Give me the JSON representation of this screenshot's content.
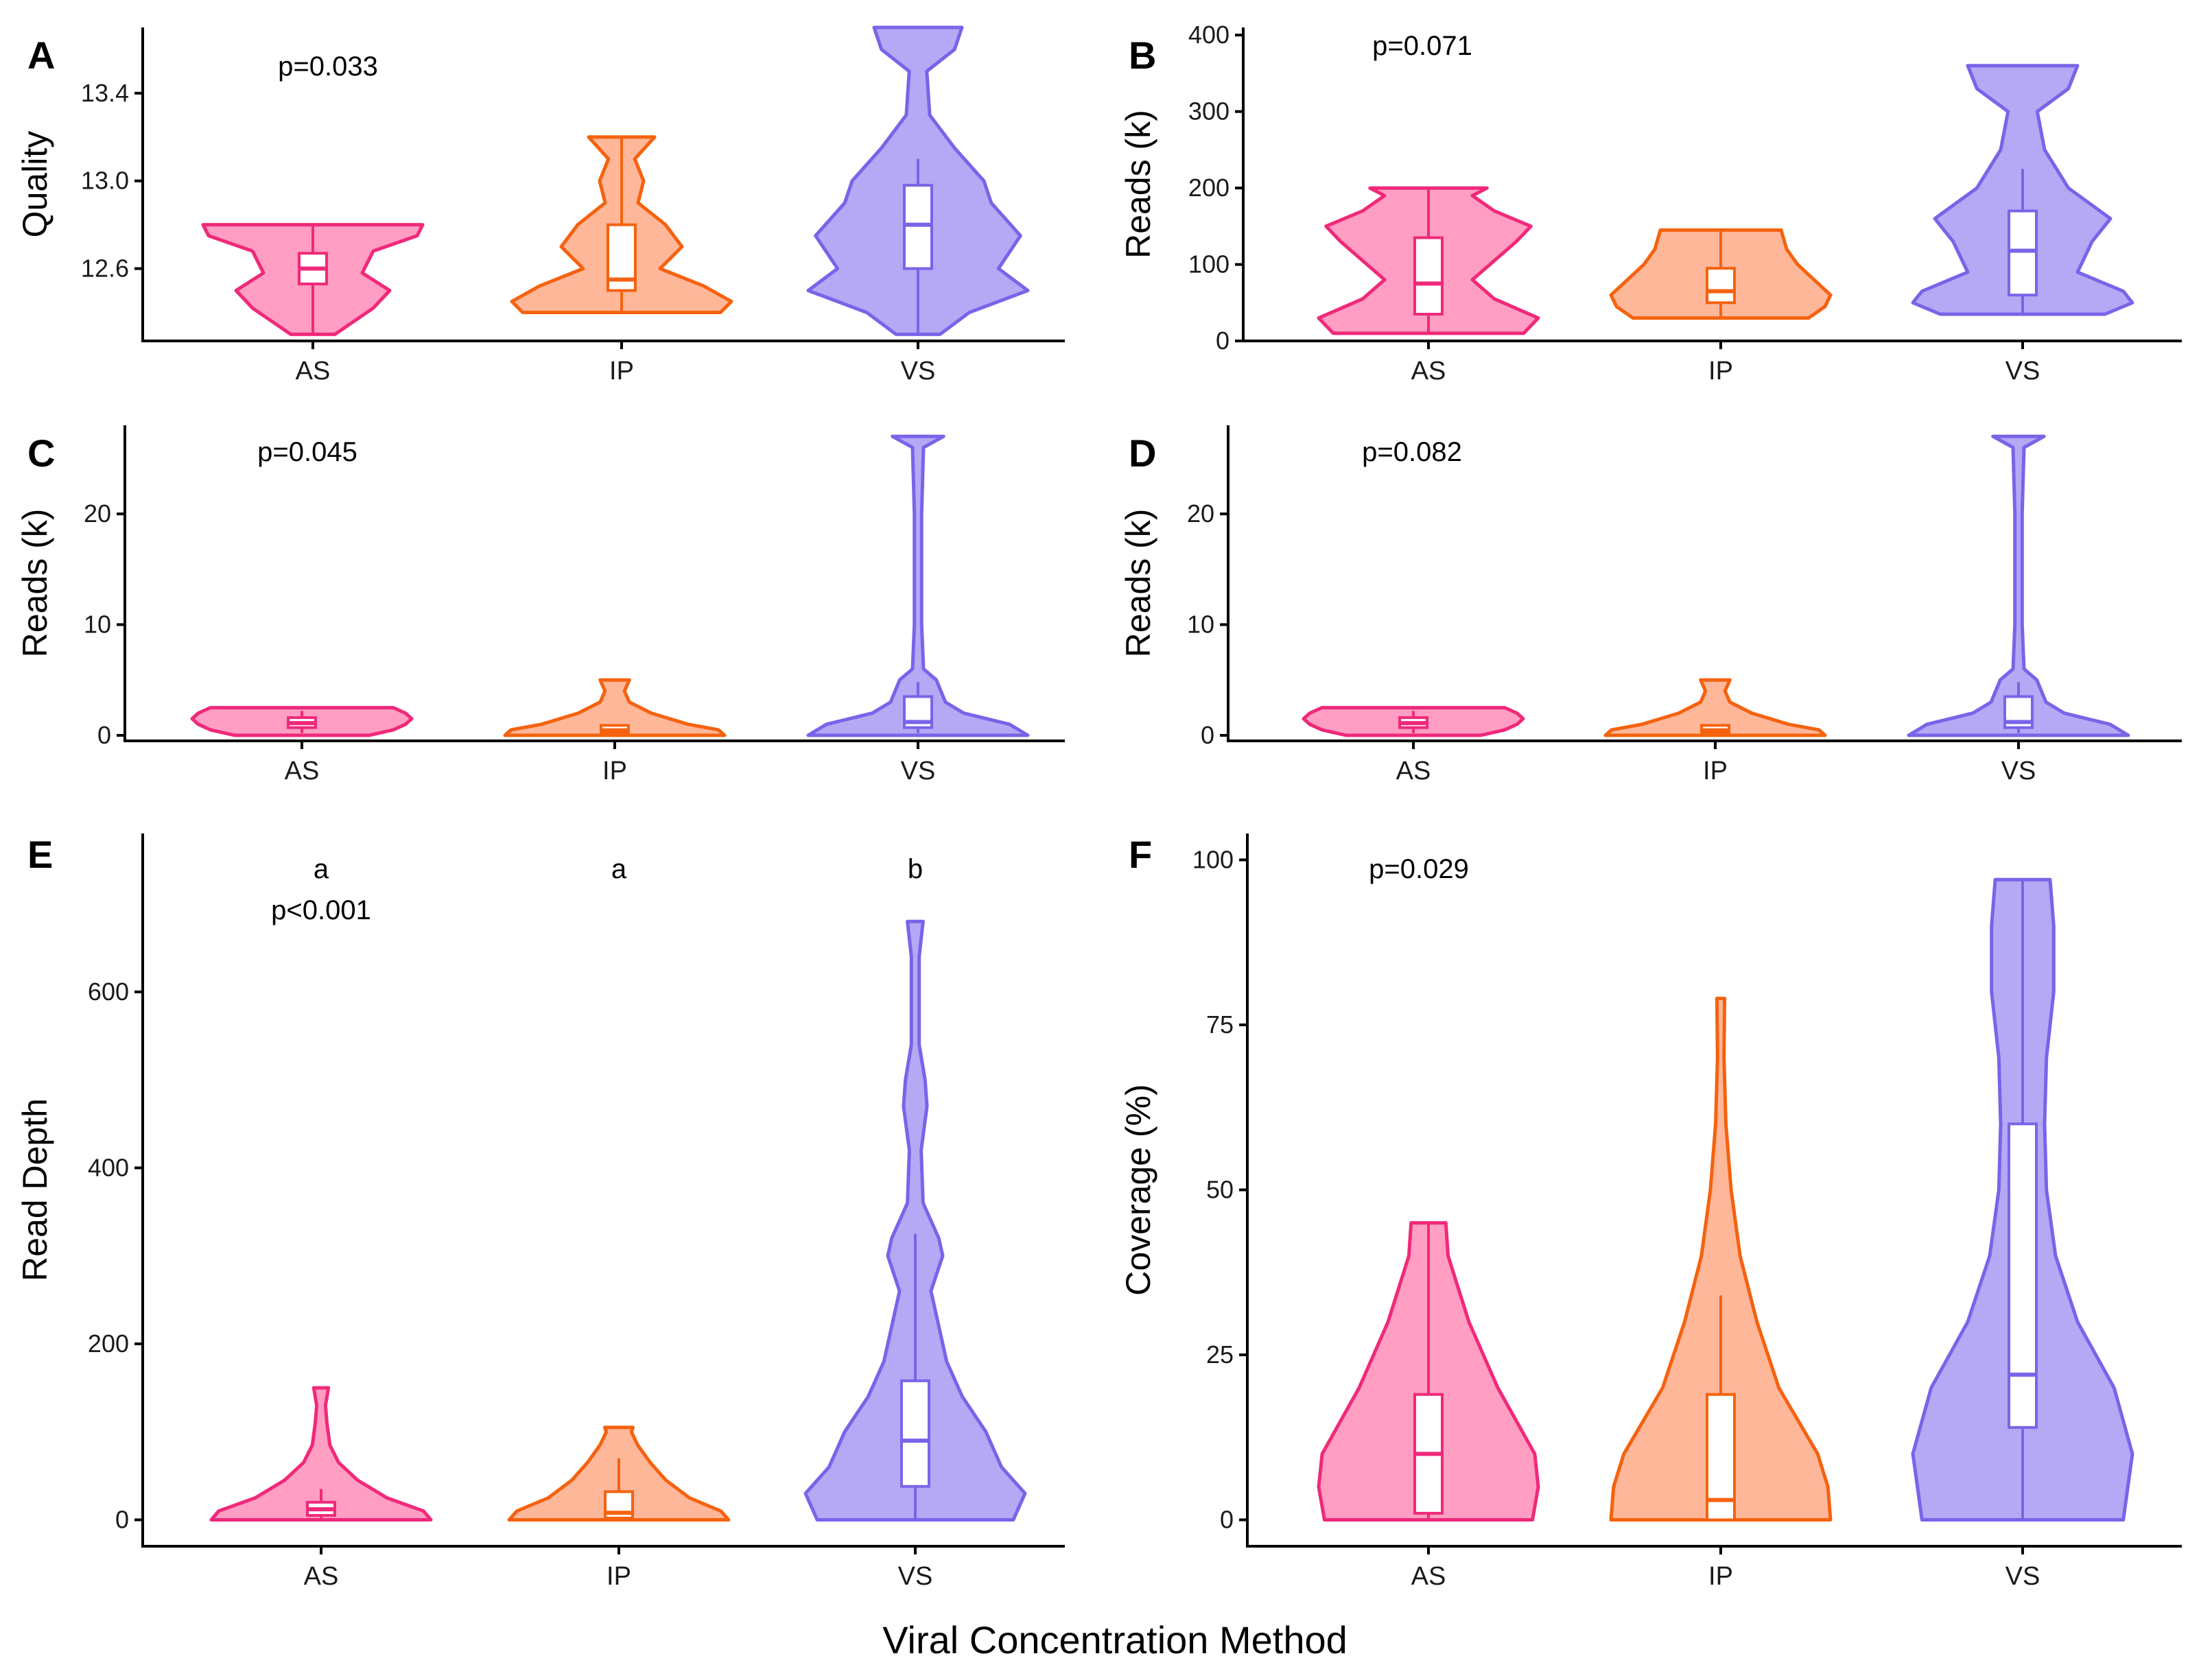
{
  "figure": {
    "x_axis_title": "Viral Concentration Method"
  },
  "colors": {
    "AS": {
      "fill": "#ff9ec2",
      "stroke": "#f0297a"
    },
    "IP": {
      "fill": "#ffb79a",
      "stroke": "#f5620f"
    },
    "VS": {
      "fill": "#b5a8f5",
      "stroke": "#7b63e8"
    }
  },
  "chart_data": [
    {
      "id": "A",
      "type": "violin",
      "panel_letter": "A",
      "ylabel": "Quality",
      "ylim": [
        12.27,
        13.7
      ],
      "yticks": [
        12.6,
        13.0,
        13.4
      ],
      "ytick_labels": [
        "12.6",
        "13.0",
        "13.4"
      ],
      "categories": [
        "AS",
        "IP",
        "VS"
      ],
      "annotations": [
        "p=0.033"
      ],
      "series": [
        {
          "name": "AS",
          "min": 12.3,
          "max": 12.8,
          "violin": [
            [
              12.3,
              0.2
            ],
            [
              12.42,
              0.55
            ],
            [
              12.5,
              0.7
            ],
            [
              12.58,
              0.45
            ],
            [
              12.68,
              0.55
            ],
            [
              12.75,
              0.95
            ],
            [
              12.8,
              1.0
            ]
          ],
          "box": {
            "q1": 12.53,
            "median": 12.6,
            "q3": 12.67,
            "whisker_low": 12.3,
            "whisker_high": 12.8
          }
        },
        {
          "name": "IP",
          "min": 12.4,
          "max": 13.2,
          "violin": [
            [
              12.4,
              0.9
            ],
            [
              12.45,
              1.0
            ],
            [
              12.52,
              0.75
            ],
            [
              12.6,
              0.35
            ],
            [
              12.7,
              0.55
            ],
            [
              12.8,
              0.4
            ],
            [
              12.9,
              0.15
            ],
            [
              13.0,
              0.2
            ],
            [
              13.1,
              0.12
            ],
            [
              13.2,
              0.3
            ]
          ],
          "box": {
            "q1": 12.5,
            "median": 12.55,
            "q3": 12.8,
            "whisker_low": 12.4,
            "whisker_high": 13.2
          }
        },
        {
          "name": "VS",
          "min": 12.3,
          "max": 13.7,
          "violin": [
            [
              12.3,
              0.15
            ],
            [
              12.4,
              0.35
            ],
            [
              12.5,
              0.75
            ],
            [
              12.6,
              0.55
            ],
            [
              12.75,
              0.7
            ],
            [
              12.9,
              0.5
            ],
            [
              13.0,
              0.45
            ],
            [
              13.15,
              0.25
            ],
            [
              13.3,
              0.08
            ],
            [
              13.5,
              0.06
            ],
            [
              13.6,
              0.25
            ],
            [
              13.7,
              0.3
            ]
          ],
          "box": {
            "q1": 12.6,
            "median": 12.8,
            "q3": 12.98,
            "whisker_low": 12.3,
            "whisker_high": 13.1
          }
        }
      ]
    },
    {
      "id": "B",
      "type": "violin",
      "panel_letter": "B",
      "ylabel": "Reads (k)",
      "ylim": [
        0,
        410
      ],
      "yticks": [
        0,
        100,
        200,
        300,
        400
      ],
      "ytick_labels": [
        "0",
        "100",
        "200",
        "300",
        "400"
      ],
      "categories": [
        "AS",
        "IP",
        "VS"
      ],
      "annotations": [
        "p=0.071"
      ],
      "series": [
        {
          "name": "AS",
          "min": 10,
          "max": 200,
          "violin": [
            [
              10,
              0.65
            ],
            [
              30,
              0.75
            ],
            [
              55,
              0.45
            ],
            [
              80,
              0.3
            ],
            [
              100,
              0.42
            ],
            [
              130,
              0.6
            ],
            [
              150,
              0.7
            ],
            [
              170,
              0.45
            ],
            [
              190,
              0.3
            ],
            [
              200,
              0.4
            ]
          ],
          "box": {
            "q1": 35,
            "median": 75,
            "q3": 135,
            "whisker_low": 10,
            "whisker_high": 200
          }
        },
        {
          "name": "IP",
          "min": 30,
          "max": 145,
          "violin": [
            [
              30,
              0.8
            ],
            [
              45,
              0.95
            ],
            [
              60,
              1.0
            ],
            [
              80,
              0.85
            ],
            [
              100,
              0.7
            ],
            [
              120,
              0.6
            ],
            [
              145,
              0.55
            ]
          ],
          "box": {
            "q1": 50,
            "median": 65,
            "q3": 95,
            "whisker_low": 30,
            "whisker_high": 145
          }
        },
        {
          "name": "VS",
          "min": 35,
          "max": 360,
          "violin": [
            [
              35,
              0.45
            ],
            [
              50,
              0.6
            ],
            [
              65,
              0.55
            ],
            [
              90,
              0.3
            ],
            [
              130,
              0.38
            ],
            [
              160,
              0.48
            ],
            [
              200,
              0.25
            ],
            [
              250,
              0.12
            ],
            [
              300,
              0.08
            ],
            [
              330,
              0.25
            ],
            [
              360,
              0.3
            ]
          ],
          "box": {
            "q1": 60,
            "median": 118,
            "q3": 170,
            "whisker_low": 35,
            "whisker_high": 225
          }
        }
      ]
    },
    {
      "id": "C",
      "type": "violin",
      "panel_letter": "C",
      "ylabel": "Reads (k)",
      "ylim": [
        -0.5,
        28
      ],
      "yticks": [
        0,
        10,
        20
      ],
      "ytick_labels": [
        "0",
        "10",
        "20"
      ],
      "categories": [
        "AS",
        "IP",
        "VS"
      ],
      "annotations": [
        "p=0.045"
      ],
      "series": [
        {
          "name": "AS",
          "min": 0,
          "max": 2.5,
          "violin": [
            [
              0,
              0.55
            ],
            [
              0.5,
              0.75
            ],
            [
              1,
              0.85
            ],
            [
              1.5,
              0.9
            ],
            [
              2,
              0.85
            ],
            [
              2.5,
              0.75
            ]
          ],
          "box": {
            "q1": 0.7,
            "median": 1.1,
            "q3": 1.6,
            "whisker_low": 0.2,
            "whisker_high": 2.2
          }
        },
        {
          "name": "IP",
          "min": 0,
          "max": 5,
          "violin": [
            [
              0,
              0.9
            ],
            [
              0.5,
              0.85
            ],
            [
              1,
              0.6
            ],
            [
              2,
              0.3
            ],
            [
              3,
              0.12
            ],
            [
              4,
              0.08
            ],
            [
              5,
              0.12
            ]
          ],
          "box": {
            "q1": 0.2,
            "median": 0.45,
            "q3": 0.9,
            "whisker_low": 0.0,
            "whisker_high": 1.0
          }
        },
        {
          "name": "VS",
          "min": 0,
          "max": 27,
          "violin": [
            [
              0,
              0.6
            ],
            [
              1,
              0.5
            ],
            [
              2,
              0.25
            ],
            [
              3,
              0.15
            ],
            [
              5,
              0.1
            ],
            [
              6,
              0.03
            ],
            [
              10,
              0.02
            ],
            [
              20,
              0.02
            ],
            [
              26,
              0.03
            ],
            [
              27,
              0.14
            ]
          ],
          "box": {
            "q1": 0.7,
            "median": 1.2,
            "q3": 3.5,
            "whisker_low": 0.2,
            "whisker_high": 4.8
          }
        }
      ]
    },
    {
      "id": "D",
      "type": "violin",
      "panel_letter": "D",
      "ylabel": "Reads (k)",
      "ylim": [
        -0.5,
        28
      ],
      "yticks": [
        0,
        10,
        20
      ],
      "ytick_labels": [
        "0",
        "10",
        "20"
      ],
      "categories": [
        "AS",
        "IP",
        "VS"
      ],
      "annotations": [
        "p=0.082"
      ],
      "series": [
        {
          "name": "AS",
          "min": 0,
          "max": 2.5,
          "violin": [
            [
              0,
              0.55
            ],
            [
              0.5,
              0.75
            ],
            [
              1,
              0.85
            ],
            [
              1.5,
              0.9
            ],
            [
              2,
              0.85
            ],
            [
              2.5,
              0.75
            ]
          ],
          "box": {
            "q1": 0.7,
            "median": 1.1,
            "q3": 1.6,
            "whisker_low": 0.2,
            "whisker_high": 2.2
          }
        },
        {
          "name": "IP",
          "min": 0,
          "max": 5,
          "violin": [
            [
              0,
              0.9
            ],
            [
              0.5,
              0.85
            ],
            [
              1,
              0.6
            ],
            [
              2,
              0.3
            ],
            [
              3,
              0.12
            ],
            [
              4,
              0.08
            ],
            [
              5,
              0.12
            ]
          ],
          "box": {
            "q1": 0.2,
            "median": 0.45,
            "q3": 0.9,
            "whisker_low": 0.0,
            "whisker_high": 1.0
          }
        },
        {
          "name": "VS",
          "min": 0,
          "max": 27,
          "violin": [
            [
              0,
              0.6
            ],
            [
              1,
              0.5
            ],
            [
              2,
              0.25
            ],
            [
              3,
              0.15
            ],
            [
              5,
              0.1
            ],
            [
              6,
              0.03
            ],
            [
              10,
              0.02
            ],
            [
              20,
              0.02
            ],
            [
              26,
              0.03
            ],
            [
              27,
              0.14
            ]
          ],
          "box": {
            "q1": 0.7,
            "median": 1.2,
            "q3": 3.5,
            "whisker_low": 0.2,
            "whisker_high": 4.8
          }
        }
      ]
    },
    {
      "id": "E",
      "type": "violin",
      "panel_letter": "E",
      "ylabel": "Read Depth",
      "ylim": [
        -30,
        780
      ],
      "yticks": [
        0,
        200,
        400,
        600
      ],
      "ytick_labels": [
        "0",
        "200",
        "400",
        "600"
      ],
      "categories": [
        "AS",
        "IP",
        "VS"
      ],
      "annotations": [
        "p<0.001"
      ],
      "group_letters": [
        "a",
        "a",
        "b"
      ],
      "series": [
        {
          "name": "AS",
          "min": 0,
          "max": 150,
          "violin": [
            [
              0,
              0.75
            ],
            [
              10,
              0.7
            ],
            [
              25,
              0.45
            ],
            [
              45,
              0.25
            ],
            [
              65,
              0.12
            ],
            [
              85,
              0.06
            ],
            [
              110,
              0.04
            ],
            [
              130,
              0.03
            ],
            [
              150,
              0.05
            ]
          ],
          "box": {
            "q1": 5,
            "median": 12,
            "q3": 20,
            "whisker_low": 0,
            "whisker_high": 35
          }
        },
        {
          "name": "IP",
          "min": 0,
          "max": 105,
          "violin": [
            [
              0,
              0.7
            ],
            [
              10,
              0.65
            ],
            [
              25,
              0.45
            ],
            [
              45,
              0.3
            ],
            [
              65,
              0.2
            ],
            [
              85,
              0.12
            ],
            [
              100,
              0.08
            ],
            [
              105,
              0.09
            ]
          ],
          "box": {
            "q1": 2,
            "median": 8,
            "q3": 32,
            "whisker_low": 0,
            "whisker_high": 70
          }
        },
        {
          "name": "VS",
          "min": 0,
          "max": 680,
          "violin": [
            [
              0,
              0.25
            ],
            [
              30,
              0.28
            ],
            [
              60,
              0.22
            ],
            [
              100,
              0.18
            ],
            [
              140,
              0.12
            ],
            [
              180,
              0.08
            ],
            [
              220,
              0.06
            ],
            [
              260,
              0.04
            ],
            [
              300,
              0.07
            ],
            [
              320,
              0.06
            ],
            [
              360,
              0.02
            ],
            [
              420,
              0.015
            ],
            [
              470,
              0.03
            ],
            [
              500,
              0.025
            ],
            [
              540,
              0.01
            ],
            [
              640,
              0.01
            ],
            [
              680,
              0.02
            ]
          ],
          "box": {
            "q1": 38,
            "median": 90,
            "q3": 158,
            "whisker_low": 0,
            "whisker_high": 325
          }
        }
      ]
    },
    {
      "id": "F",
      "type": "violin",
      "panel_letter": "F",
      "ylabel": "Coverage (%)",
      "ylim": [
        -4,
        104
      ],
      "yticks": [
        0,
        25,
        50,
        75,
        100
      ],
      "ytick_labels": [
        "0",
        "25",
        "50",
        "75",
        "100"
      ],
      "categories": [
        "AS",
        "IP",
        "VS"
      ],
      "annotations": [
        "p=0.029"
      ],
      "series": [
        {
          "name": "AS",
          "min": 0,
          "max": 45,
          "violin": [
            [
              0,
              0.9
            ],
            [
              5,
              0.95
            ],
            [
              10,
              0.92
            ],
            [
              20,
              0.6
            ],
            [
              30,
              0.35
            ],
            [
              40,
              0.17
            ],
            [
              45,
              0.15
            ]
          ],
          "box": {
            "q1": 1,
            "median": 10,
            "q3": 19,
            "whisker_low": 0,
            "whisker_high": 45
          }
        },
        {
          "name": "IP",
          "min": 0,
          "max": 79,
          "violin": [
            [
              0,
              0.85
            ],
            [
              5,
              0.83
            ],
            [
              10,
              0.75
            ],
            [
              20,
              0.45
            ],
            [
              30,
              0.28
            ],
            [
              40,
              0.15
            ],
            [
              50,
              0.08
            ],
            [
              60,
              0.04
            ],
            [
              70,
              0.025
            ],
            [
              79,
              0.03
            ]
          ],
          "box": {
            "q1": 0,
            "median": 3,
            "q3": 19,
            "whisker_low": 0,
            "whisker_high": 34
          }
        },
        {
          "name": "VS",
          "min": 0,
          "max": 97,
          "violin": [
            [
              0,
              0.55
            ],
            [
              10,
              0.6
            ],
            [
              20,
              0.5
            ],
            [
              30,
              0.3
            ],
            [
              40,
              0.18
            ],
            [
              50,
              0.13
            ],
            [
              60,
              0.12
            ],
            [
              70,
              0.13
            ],
            [
              80,
              0.17
            ],
            [
              90,
              0.17
            ],
            [
              97,
              0.15
            ]
          ],
          "box": {
            "q1": 14,
            "median": 22,
            "q3": 60,
            "whisker_low": 0,
            "whisker_high": 97
          }
        }
      ]
    }
  ]
}
